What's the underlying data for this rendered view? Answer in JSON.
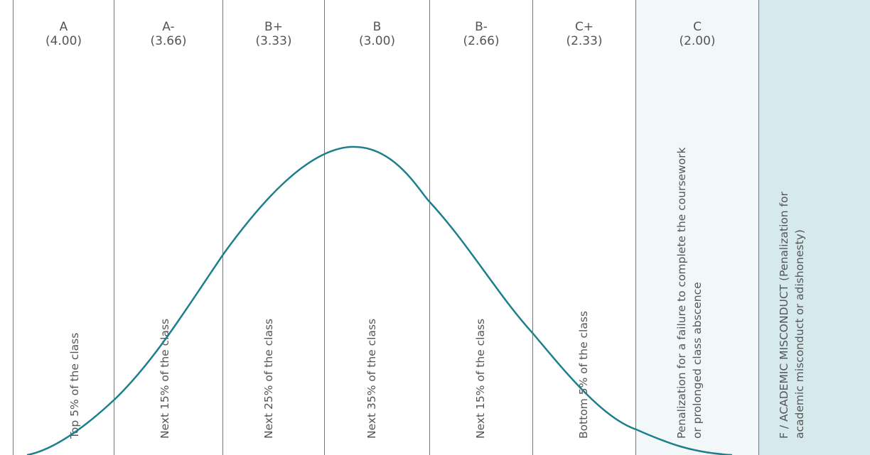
{
  "columns": [
    {
      "grade": "A",
      "points": "(4.00)",
      "desc": [
        "Top 5% of the class"
      ]
    },
    {
      "grade": "A-",
      "points": "(3.66)",
      "desc": [
        "Next 15% of the class"
      ]
    },
    {
      "grade": "B+",
      "points": "(3.33)",
      "desc": [
        "Next 25% of the class"
      ]
    },
    {
      "grade": "B",
      "points": "(3.00)",
      "desc": [
        "Next 35% of the class"
      ]
    },
    {
      "grade": "B-",
      "points": "(2.66)",
      "desc": [
        "Next 15% of the class"
      ]
    },
    {
      "grade": "C+",
      "points": "(2.33)",
      "desc": [
        "Bottom 5% of the class"
      ]
    },
    {
      "grade": "C",
      "points": "(2.00)",
      "desc": [
        "Penalization for a failure to complete the coursework",
        "or prolonged class abscence"
      ]
    },
    {
      "grade": "",
      "points": "",
      "desc": [
        "F / ACADEMIC MISCONDUCT (Penalization for",
        "academic misconduct or adishonesty)"
      ]
    }
  ],
  "colors": {
    "curve": "#1d7f8c",
    "column_c_bg": "#f2f8f9",
    "column_f_bg": "#d6e9ed",
    "line": "#777777",
    "text": "#555555"
  }
}
